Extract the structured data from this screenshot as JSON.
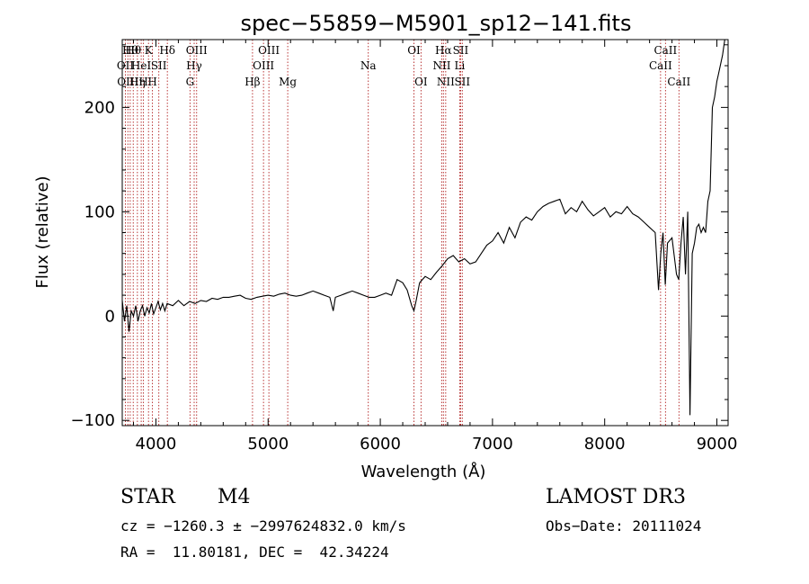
{
  "chart_data": {
    "type": "line",
    "title": "spec−55859−M5901_sp12−141.fits",
    "xlabel": "Wavelength (Å)",
    "ylabel": "Flux (relative)",
    "xlim": [
      3700,
      9100
    ],
    "ylim": [
      -105,
      265
    ],
    "x_ticks": [
      4000,
      5000,
      6000,
      7000,
      8000,
      9000
    ],
    "y_ticks": [
      -100,
      0,
      100,
      200
    ],
    "grid": false,
    "series": [
      {
        "color": "#000000",
        "points": [
          [
            3700,
            15
          ],
          [
            3720,
            -5
          ],
          [
            3740,
            10
          ],
          [
            3760,
            -15
          ],
          [
            3780,
            5
          ],
          [
            3800,
            0
          ],
          [
            3820,
            10
          ],
          [
            3840,
            -5
          ],
          [
            3860,
            5
          ],
          [
            3880,
            10
          ],
          [
            3900,
            0
          ],
          [
            3920,
            8
          ],
          [
            3940,
            3
          ],
          [
            3960,
            12
          ],
          [
            3980,
            2
          ],
          [
            4000,
            8
          ],
          [
            4020,
            14
          ],
          [
            4040,
            6
          ],
          [
            4060,
            12
          ],
          [
            4080,
            5
          ],
          [
            4100,
            12
          ],
          [
            4150,
            10
          ],
          [
            4200,
            15
          ],
          [
            4250,
            10
          ],
          [
            4300,
            14
          ],
          [
            4350,
            12
          ],
          [
            4400,
            15
          ],
          [
            4450,
            14
          ],
          [
            4500,
            17
          ],
          [
            4550,
            16
          ],
          [
            4600,
            18
          ],
          [
            4650,
            18
          ],
          [
            4700,
            19
          ],
          [
            4750,
            20
          ],
          [
            4800,
            17
          ],
          [
            4850,
            16
          ],
          [
            4900,
            18
          ],
          [
            4950,
            19
          ],
          [
            5000,
            20
          ],
          [
            5050,
            19
          ],
          [
            5100,
            21
          ],
          [
            5150,
            22
          ],
          [
            5200,
            20
          ],
          [
            5250,
            19
          ],
          [
            5300,
            20
          ],
          [
            5350,
            22
          ],
          [
            5400,
            24
          ],
          [
            5450,
            22
          ],
          [
            5500,
            20
          ],
          [
            5550,
            18
          ],
          [
            5580,
            5
          ],
          [
            5600,
            18
          ],
          [
            5650,
            20
          ],
          [
            5700,
            22
          ],
          [
            5750,
            24
          ],
          [
            5800,
            22
          ],
          [
            5850,
            20
          ],
          [
            5900,
            18
          ],
          [
            5950,
            18
          ],
          [
            6000,
            20
          ],
          [
            6050,
            22
          ],
          [
            6100,
            20
          ],
          [
            6150,
            35
          ],
          [
            6200,
            32
          ],
          [
            6240,
            25
          ],
          [
            6280,
            10
          ],
          [
            6300,
            5
          ],
          [
            6320,
            15
          ],
          [
            6350,
            32
          ],
          [
            6400,
            38
          ],
          [
            6450,
            35
          ],
          [
            6500,
            42
          ],
          [
            6550,
            48
          ],
          [
            6600,
            55
          ],
          [
            6650,
            58
          ],
          [
            6700,
            52
          ],
          [
            6750,
            55
          ],
          [
            6800,
            50
          ],
          [
            6850,
            52
          ],
          [
            6900,
            60
          ],
          [
            6950,
            68
          ],
          [
            7000,
            72
          ],
          [
            7050,
            80
          ],
          [
            7100,
            70
          ],
          [
            7150,
            85
          ],
          [
            7200,
            75
          ],
          [
            7250,
            90
          ],
          [
            7300,
            95
          ],
          [
            7350,
            92
          ],
          [
            7400,
            100
          ],
          [
            7450,
            105
          ],
          [
            7500,
            108
          ],
          [
            7550,
            110
          ],
          [
            7600,
            112
          ],
          [
            7650,
            98
          ],
          [
            7700,
            104
          ],
          [
            7750,
            100
          ],
          [
            7800,
            110
          ],
          [
            7850,
            102
          ],
          [
            7900,
            96
          ],
          [
            7950,
            100
          ],
          [
            8000,
            104
          ],
          [
            8050,
            95
          ],
          [
            8100,
            100
          ],
          [
            8150,
            98
          ],
          [
            8200,
            105
          ],
          [
            8250,
            98
          ],
          [
            8300,
            95
          ],
          [
            8350,
            90
          ],
          [
            8400,
            85
          ],
          [
            8450,
            80
          ],
          [
            8480,
            25
          ],
          [
            8500,
            60
          ],
          [
            8520,
            80
          ],
          [
            8540,
            30
          ],
          [
            8560,
            70
          ],
          [
            8600,
            75
          ],
          [
            8640,
            40
          ],
          [
            8660,
            35
          ],
          [
            8680,
            70
          ],
          [
            8700,
            95
          ],
          [
            8720,
            40
          ],
          [
            8740,
            100
          ],
          [
            8760,
            -95
          ],
          [
            8780,
            60
          ],
          [
            8800,
            70
          ],
          [
            8820,
            85
          ],
          [
            8840,
            88
          ],
          [
            8860,
            80
          ],
          [
            8880,
            85
          ],
          [
            8900,
            80
          ],
          [
            8920,
            110
          ],
          [
            8940,
            120
          ],
          [
            8960,
            200
          ],
          [
            8980,
            210
          ],
          [
            9000,
            225
          ],
          [
            9010,
            230
          ],
          [
            9030,
            240
          ],
          [
            9050,
            250
          ],
          [
            9070,
            265
          ]
        ]
      }
    ],
    "vlines": [
      {
        "x": 3728,
        "label": "OII",
        "row": 2
      },
      {
        "x": 3750,
        "label": "OIII",
        "row": 3
      },
      {
        "x": 3771,
        "label": "Hθ",
        "row": 1
      },
      {
        "x": 3798,
        "label": "Hθ",
        "row": 1
      },
      {
        "x": 3835,
        "label": "Hη",
        "row": 3
      },
      {
        "x": 3869,
        "label": "HeI",
        "row": 2
      },
      {
        "x": 3889,
        "label": "H",
        "row": 3
      },
      {
        "x": 3934,
        "label": "K",
        "row": 1
      },
      {
        "x": 3969,
        "label": "H",
        "row": 3
      },
      {
        "x": 4026,
        "label": "SII",
        "row": 2
      },
      {
        "x": 4102,
        "label": "Hδ",
        "row": 1
      },
      {
        "x": 4304,
        "label": "G",
        "row": 3
      },
      {
        "x": 4341,
        "label": "Hγ",
        "row": 2
      },
      {
        "x": 4363,
        "label": "OIII",
        "row": 1
      },
      {
        "x": 4861,
        "label": "Hβ",
        "row": 3
      },
      {
        "x": 4959,
        "label": "OIII",
        "row": 2
      },
      {
        "x": 5007,
        "label": "OIII",
        "row": 1
      },
      {
        "x": 5175,
        "label": "Mg",
        "row": 3
      },
      {
        "x": 5893,
        "label": "Na",
        "row": 2
      },
      {
        "x": 6300,
        "label": "OI",
        "row": 1
      },
      {
        "x": 6363,
        "label": "OI",
        "row": 3
      },
      {
        "x": 6548,
        "label": "NII",
        "row": 2
      },
      {
        "x": 6563,
        "label": "Hα",
        "row": 1
      },
      {
        "x": 6583,
        "label": "NII",
        "row": 3
      },
      {
        "x": 6708,
        "label": "Li",
        "row": 2
      },
      {
        "x": 6716,
        "label": "SII",
        "row": 1
      },
      {
        "x": 6731,
        "label": "SII",
        "row": 3
      },
      {
        "x": 8498,
        "label": "CaII",
        "row": 2
      },
      {
        "x": 8542,
        "label": "CaII",
        "row": 1
      },
      {
        "x": 8662,
        "label": "CaII",
        "row": 3
      }
    ],
    "vline_color": "#b22222"
  },
  "info": {
    "object_class": "STAR",
    "subclass": "M4",
    "survey": "LAMOST DR3",
    "redshift_line": "cz = −1260.3 ± −2997624832.0 km/s",
    "obs_date_line": "Obs−Date: 20111024",
    "coords_line": "RA =  11.80181, DEC =  42.34224"
  }
}
